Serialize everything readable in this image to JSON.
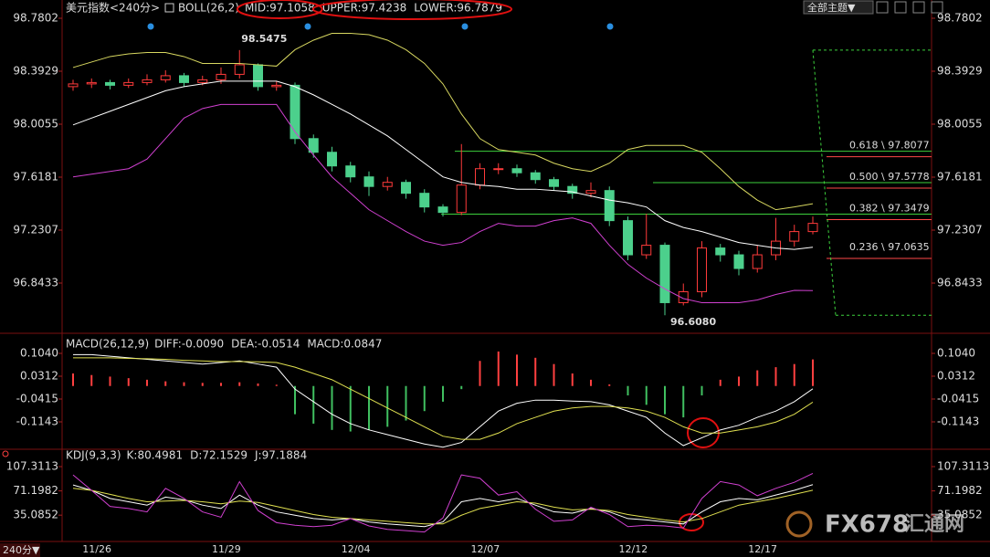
{
  "header": {
    "symbol": "美元指数",
    "period": "<240分>",
    "theme_button": "全部主题▼",
    "period_button": "240分▼",
    "watermark": "FX678",
    "watermark_cn": "汇通网"
  },
  "chart_data": [
    {
      "type": "candlestick",
      "title": "BOLL(26,2)",
      "categories": [
        null,
        "11/26",
        null,
        null,
        null,
        null,
        null,
        null,
        "11/29",
        null,
        null,
        null,
        null,
        null,
        null,
        "12/04",
        null,
        null,
        null,
        null,
        null,
        null,
        "12/07",
        null,
        null,
        null,
        null,
        null,
        null,
        null,
        "12/12",
        null,
        null,
        null,
        null,
        null,
        null,
        "12/17",
        null,
        null,
        null
      ],
      "open": [
        98.28,
        98.3,
        98.31,
        98.29,
        98.31,
        98.33,
        98.36,
        98.31,
        98.33,
        98.37,
        98.44,
        98.28,
        98.29,
        97.9,
        97.8,
        97.7,
        97.62,
        97.55,
        97.58,
        97.5,
        97.4,
        97.36,
        97.56,
        97.68,
        97.68,
        97.65,
        97.6,
        97.55,
        97.5,
        97.52,
        97.3,
        97.05,
        97.12,
        96.7,
        96.78,
        97.1,
        97.05,
        96.95,
        97.05,
        97.15,
        97.22
      ],
      "high": [
        98.33,
        98.34,
        98.33,
        98.34,
        98.37,
        98.4,
        98.38,
        98.36,
        98.42,
        98.5475,
        98.45,
        98.32,
        98.31,
        97.93,
        97.84,
        97.73,
        97.66,
        97.62,
        97.6,
        97.53,
        97.42,
        97.86,
        97.72,
        97.72,
        97.71,
        97.67,
        97.62,
        97.57,
        97.58,
        97.55,
        97.33,
        97.35,
        97.14,
        96.84,
        97.15,
        97.13,
        97.08,
        97.12,
        97.32,
        97.27,
        97.33
      ],
      "low": [
        98.25,
        98.27,
        98.26,
        98.27,
        98.29,
        98.31,
        98.28,
        98.29,
        98.3,
        98.34,
        98.25,
        98.25,
        97.86,
        97.76,
        97.66,
        97.58,
        97.48,
        97.52,
        97.46,
        97.36,
        97.33,
        97.34,
        97.53,
        97.64,
        97.62,
        97.57,
        97.52,
        97.46,
        97.47,
        97.26,
        97.01,
        97.02,
        96.608,
        96.68,
        96.74,
        97.0,
        96.9,
        96.92,
        97.01,
        97.11,
        97.2
      ],
      "close": [
        98.3,
        98.31,
        98.29,
        98.31,
        98.33,
        98.36,
        98.31,
        98.33,
        98.37,
        98.44,
        98.28,
        98.29,
        97.9,
        97.8,
        97.7,
        97.62,
        97.55,
        97.58,
        97.5,
        97.4,
        97.36,
        97.56,
        97.68,
        97.68,
        97.65,
        97.6,
        97.55,
        97.5,
        97.52,
        97.3,
        97.05,
        97.12,
        96.7,
        96.78,
        97.1,
        97.05,
        96.95,
        97.05,
        97.15,
        97.22,
        97.28
      ],
      "up_color": "#ff3b3b",
      "down_color": "#4cd08c",
      "series": [
        {
          "name": "MID:97.1058",
          "color": "#ffffff",
          "values": [
            98.0,
            98.05,
            98.1,
            98.15,
            98.2,
            98.25,
            98.28,
            98.3,
            98.32,
            98.32,
            98.32,
            98.32,
            98.28,
            98.22,
            98.15,
            98.08,
            98.0,
            97.92,
            97.82,
            97.72,
            97.62,
            97.58,
            97.56,
            97.55,
            97.53,
            97.53,
            97.52,
            97.51,
            97.48,
            97.45,
            97.43,
            97.4,
            97.3,
            97.25,
            97.22,
            97.18,
            97.14,
            97.12,
            97.1,
            97.09,
            97.1058
          ]
        },
        {
          "name": "UPPER:97.4238",
          "color": "#d8d860",
          "values": [
            98.42,
            98.46,
            98.5,
            98.52,
            98.53,
            98.53,
            98.5,
            98.45,
            98.45,
            98.45,
            98.44,
            98.43,
            98.55,
            98.62,
            98.67,
            98.67,
            98.66,
            98.62,
            98.55,
            98.45,
            98.3,
            98.08,
            97.9,
            97.82,
            97.8,
            97.78,
            97.72,
            97.68,
            97.66,
            97.72,
            97.82,
            97.85,
            97.85,
            97.85,
            97.8,
            97.68,
            97.55,
            97.45,
            97.38,
            97.4,
            97.4238
          ]
        },
        {
          "name": "LOWER:96.7879",
          "color": "#d040d0",
          "values": [
            97.62,
            97.64,
            97.66,
            97.68,
            97.75,
            97.9,
            98.05,
            98.12,
            98.15,
            98.15,
            98.15,
            98.15,
            97.95,
            97.78,
            97.62,
            97.5,
            97.38,
            97.3,
            97.22,
            97.15,
            97.12,
            97.14,
            97.22,
            97.28,
            97.26,
            97.26,
            97.3,
            97.32,
            97.28,
            97.12,
            96.98,
            96.88,
            96.8,
            96.73,
            96.7,
            96.7,
            96.7,
            96.72,
            96.76,
            96.79,
            96.7879
          ]
        }
      ],
      "max_label": 98.5475,
      "min_label": {
        "value": 96.608,
        "label": "96.6080"
      },
      "fib": [
        {
          "value": 97.8077,
          "label": "0.618 \\ 97.8077"
        },
        {
          "value": 97.5778,
          "label": "0.500 \\ 97.5778"
        },
        {
          "value": 97.3479,
          "label": "0.382 \\ 97.3479"
        },
        {
          "value": 97.0635,
          "label": "0.236 \\ 97.0635"
        }
      ],
      "fib_color": "#3cd03c",
      "label_color": "#ff4848",
      "ylim": [
        96.5094,
        98.7802
      ],
      "yticks": [
        98.7802,
        98.3929,
        98.0055,
        97.6181,
        97.2307,
        96.8433
      ]
    },
    {
      "type": "macd",
      "title": "MACD(26,12,9)",
      "series": [
        {
          "name": "DIFF:-0.0090",
          "color": "#ffffff",
          "values": [
            0.1,
            0.1,
            0.095,
            0.09,
            0.085,
            0.08,
            0.075,
            0.07,
            0.075,
            0.08,
            0.07,
            0.06,
            -0.01,
            -0.05,
            -0.09,
            -0.12,
            -0.14,
            -0.155,
            -0.17,
            -0.185,
            -0.195,
            -0.18,
            -0.13,
            -0.08,
            -0.055,
            -0.045,
            -0.045,
            -0.048,
            -0.05,
            -0.06,
            -0.08,
            -0.1,
            -0.15,
            -0.19,
            -0.165,
            -0.14,
            -0.125,
            -0.1,
            -0.08,
            -0.05,
            -0.009
          ]
        },
        {
          "name": "DEA:-0.0514",
          "color": "#e0e050",
          "values": [
            0.09,
            0.09,
            0.09,
            0.088,
            0.087,
            0.085,
            0.082,
            0.08,
            0.078,
            0.078,
            0.077,
            0.075,
            0.06,
            0.04,
            0.02,
            -0.01,
            -0.04,
            -0.07,
            -0.1,
            -0.13,
            -0.16,
            -0.17,
            -0.17,
            -0.15,
            -0.12,
            -0.1,
            -0.08,
            -0.07,
            -0.065,
            -0.065,
            -0.07,
            -0.08,
            -0.1,
            -0.13,
            -0.15,
            -0.15,
            -0.14,
            -0.13,
            -0.115,
            -0.09,
            -0.0514
          ]
        },
        {
          "name": "MACD:0.0847",
          "color": "#d040d0",
          "style": "histogram",
          "up_color": "#ff4040",
          "down_color": "#40c060",
          "values": [
            0.04,
            0.035,
            0.03,
            0.025,
            0.02,
            0.015,
            0.012,
            0.01,
            0.01,
            0.012,
            0.008,
            0.004,
            -0.09,
            -0.12,
            -0.14,
            -0.145,
            -0.14,
            -0.13,
            -0.11,
            -0.08,
            -0.05,
            -0.01,
            0.08,
            0.11,
            0.1,
            0.09,
            0.07,
            0.04,
            0.02,
            0.005,
            -0.03,
            -0.06,
            -0.09,
            -0.1,
            -0.03,
            0.02,
            0.03,
            0.05,
            0.06,
            0.07,
            0.0847
          ]
        }
      ],
      "ylim": [
        -0.1958,
        0.1535
      ],
      "yticks": [
        {
          "value": 0.104,
          "label": "0.1040"
        },
        0.0312,
        -0.0415,
        -0.1143
      ]
    },
    {
      "type": "kdj",
      "title": "KDJ(9,3,3)",
      "series": [
        {
          "name": "K:80.4981",
          "color": "#ffffff",
          "values": [
            80,
            72,
            60,
            55,
            50,
            62,
            58,
            50,
            45,
            65,
            50,
            40,
            35,
            30,
            28,
            30,
            25,
            22,
            20,
            18,
            25,
            55,
            60,
            55,
            60,
            50,
            40,
            38,
            45,
            40,
            30,
            28,
            25,
            22,
            40,
            55,
            60,
            58,
            65,
            72,
            80.4981
          ]
        },
        {
          "name": "D:72.1529",
          "color": "#e0e050",
          "values": [
            75,
            72,
            66,
            60,
            55,
            56,
            57,
            55,
            52,
            56,
            54,
            48,
            42,
            36,
            32,
            30,
            28,
            26,
            24,
            22,
            22,
            35,
            45,
            50,
            55,
            53,
            47,
            43,
            44,
            42,
            36,
            32,
            28,
            25,
            30,
            40,
            50,
            55,
            60,
            66,
            72.1529
          ]
        },
        {
          "name": "J:97.1884",
          "color": "#d040d0",
          "values": [
            95,
            72,
            48,
            45,
            40,
            75,
            60,
            40,
            32,
            85,
            42,
            24,
            20,
            18,
            20,
            30,
            19,
            14,
            12,
            10,
            31,
            95,
            90,
            65,
            70,
            44,
            26,
            28,
            47,
            36,
            18,
            20,
            19,
            16,
            60,
            85,
            80,
            64,
            75,
            84,
            97.1884
          ]
        }
      ],
      "ylim": [
        0,
        125
      ],
      "yticks": [
        107.3113,
        71.1982,
        35.0852
      ]
    }
  ]
}
